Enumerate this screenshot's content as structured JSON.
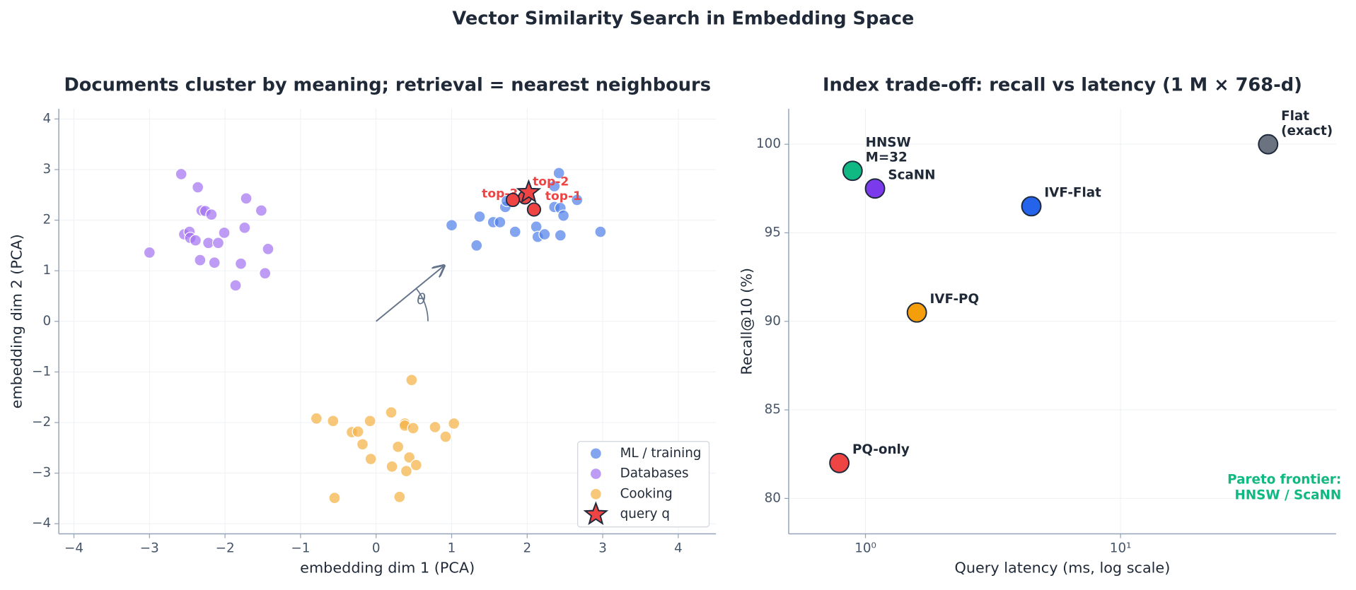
{
  "title": "Vector Similarity Search in Embedding Space",
  "chart_data": [
    {
      "type": "scatter",
      "title": "Documents cluster by meaning;  retrieval = nearest neighbours",
      "xlabel": "embedding dim 1 (PCA)",
      "ylabel": "embedding dim 2 (PCA)",
      "xlim": [
        -4.2,
        4.5
      ],
      "ylim": [
        -4.2,
        4.2
      ],
      "xticks": [
        {
          "value": -4,
          "label": "−4"
        },
        {
          "value": -3,
          "label": "−3"
        },
        {
          "value": -2,
          "label": "−2"
        },
        {
          "value": -1,
          "label": "−1"
        },
        0,
        1,
        2,
        3,
        4
      ],
      "yticks": [
        {
          "value": -4,
          "label": "−4"
        },
        {
          "value": -3,
          "label": "−3"
        },
        {
          "value": -2,
          "label": "−2"
        },
        {
          "value": -1,
          "label": "−1"
        },
        0,
        1,
        2,
        3,
        4
      ],
      "grid": true,
      "legend": "lower right",
      "series": [
        {
          "name": "ML / training",
          "color": "#4f7fe8",
          "marker": "circle",
          "x": [
            1.0,
            1.33,
            1.37,
            1.55,
            1.64,
            1.71,
            1.73,
            1.84,
            2.12,
            2.14,
            2.23,
            2.36,
            2.42,
            2.36,
            2.44,
            2.48,
            2.44,
            2.66,
            2.97
          ],
          "y": [
            1.9,
            1.5,
            2.07,
            1.96,
            1.96,
            2.26,
            2.38,
            1.77,
            1.87,
            1.67,
            1.72,
            2.26,
            2.93,
            2.67,
            2.24,
            2.09,
            1.7,
            2.4,
            1.77
          ]
        },
        {
          "name": "Databases",
          "color": "#a371f0",
          "marker": "circle",
          "x": [
            -2.58,
            -2.36,
            -3.0,
            -2.31,
            -2.26,
            -2.18,
            -2.54,
            -2.47,
            -2.46,
            -2.39,
            -2.33,
            -2.22,
            -2.14,
            -2.09,
            -2.01,
            -1.72,
            -1.74,
            -1.79,
            -1.86,
            -1.52,
            -1.43,
            -1.47
          ],
          "y": [
            2.91,
            2.65,
            1.36,
            2.19,
            2.18,
            2.11,
            1.72,
            1.77,
            1.65,
            1.6,
            1.21,
            1.55,
            1.16,
            1.55,
            1.75,
            2.43,
            1.85,
            1.14,
            0.71,
            2.19,
            1.43,
            0.95
          ]
        },
        {
          "name": "Cooking",
          "color": "#f5b041",
          "marker": "circle",
          "x": [
            0.47,
            -0.79,
            -0.57,
            -0.08,
            0.2,
            0.38,
            0.38,
            0.49,
            0.78,
            1.03,
            0.92,
            -0.32,
            -0.24,
            -0.18,
            -0.07,
            0.29,
            0.44,
            0.21,
            0.4,
            0.53,
            -0.55,
            0.31
          ],
          "y": [
            -1.16,
            -1.92,
            -1.97,
            -1.97,
            -1.8,
            -2.02,
            -2.06,
            -2.11,
            -2.09,
            -2.02,
            -2.28,
            -2.19,
            -2.18,
            -2.43,
            -2.72,
            -2.48,
            -2.69,
            -2.87,
            -2.96,
            -2.84,
            -3.49,
            -3.47
          ]
        },
        {
          "name": "query q",
          "color": "#ef4444",
          "marker": "star",
          "x": [
            2.02
          ],
          "y": [
            2.55
          ]
        }
      ],
      "neighbors": {
        "color": "#ef4444",
        "labels": [
          "top-1",
          "top-2",
          "top-3"
        ],
        "x": [
          2.09,
          1.97,
          1.81
        ],
        "y": [
          2.21,
          2.45,
          2.4
        ]
      },
      "vector": {
        "label": "θ",
        "x": 0.9,
        "y": 1.1
      }
    },
    {
      "type": "scatter",
      "title": "Index trade-off:  recall vs latency  (1 M × 768-d)",
      "xlabel": "Query latency (ms, log scale)",
      "ylabel": "Recall@10  (%)",
      "xscale": "log",
      "xlim": [
        0.5,
        70
      ],
      "ylim": [
        78,
        102
      ],
      "xticks": [
        {
          "value": 1,
          "label": "10⁰"
        },
        {
          "value": 10,
          "label": "10¹"
        }
      ],
      "yticks": [
        80,
        85,
        90,
        95,
        100
      ],
      "grid": true,
      "points": {
        "labels": [
          [
            "PQ-only"
          ],
          [
            "HNSW",
            "M=32"
          ],
          [
            "ScaNN"
          ],
          [
            "IVF-PQ"
          ],
          [
            "IVF-Flat"
          ],
          [
            "Flat",
            "(exact)"
          ]
        ],
        "colors": [
          "#ef4444",
          "#10b981",
          "#7c3aed",
          "#f59e0b",
          "#2563eb",
          "#6b7280"
        ],
        "x": [
          0.79,
          0.89,
          1.09,
          1.59,
          4.47,
          37.9
        ],
        "y": [
          82.0,
          98.5,
          97.5,
          90.5,
          96.5,
          100.0
        ]
      },
      "annotation": {
        "lines": [
          "Pareto frontier:",
          "HNSW / ScaNN"
        ],
        "color": "#10b981",
        "loc": "lower right"
      }
    }
  ]
}
